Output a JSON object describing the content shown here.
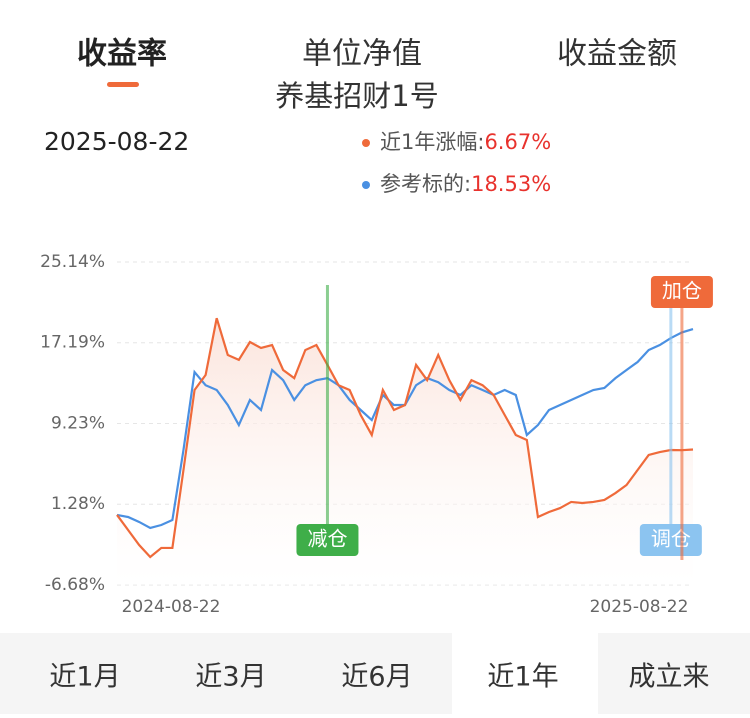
{
  "tabs": [
    "收益率",
    "单位净值",
    "收益金额"
  ],
  "fund_name": "养基招财1号",
  "date": "2025-08-22",
  "period_tabs": [
    "近1月",
    "近3月",
    "近6月",
    "近1年",
    "成立来"
  ],
  "annotations": [
    "减仓",
    "调仓",
    "加仓"
  ],
  "chart_data": {
    "type": "line",
    "categories": [
      "2024-08-22",
      null,
      null,
      null,
      null,
      null,
      null,
      null,
      null,
      null,
      null,
      null,
      null,
      null,
      null,
      null,
      null,
      null,
      null,
      null,
      null,
      null,
      null,
      null,
      null,
      null,
      null,
      null,
      null,
      null,
      null,
      null,
      null,
      null,
      null,
      null,
      null,
      null,
      null,
      null,
      null,
      null,
      null,
      null,
      null,
      null,
      null,
      null,
      null,
      null,
      null,
      null,
      "2025-08-22"
    ],
    "series": [
      {
        "name": "近1年涨幅:",
        "color": "#ef6a3a",
        "values": [
          0.22,
          -1.26,
          -2.74,
          -3.92,
          -3.03,
          -3.03,
          4.65,
          12.53,
          14.01,
          19.6,
          15.98,
          15.5,
          17.26,
          16.67,
          16.96,
          14.5,
          13.7,
          16.47,
          16.96,
          15.0,
          13.0,
          12.53,
          10.07,
          8.1,
          12.53,
          10.56,
          11.05,
          15.0,
          13.5,
          15.98,
          13.5,
          11.55,
          13.5,
          13.0,
          12.04,
          10.07,
          8.1,
          7.61,
          0.02,
          0.51,
          0.9,
          1.5,
          1.4,
          1.5,
          1.7,
          2.38,
          3.17,
          4.65,
          6.13,
          6.42,
          6.62,
          6.6,
          6.67
        ],
        "value_labels": [
          null,
          null,
          null,
          null,
          null,
          null,
          null,
          null,
          null,
          null,
          null,
          null,
          null,
          null,
          null,
          null,
          null,
          null,
          null,
          null,
          null,
          null,
          null,
          null,
          null,
          null,
          null,
          null,
          null,
          null,
          null,
          null,
          null,
          null,
          null,
          null,
          null,
          null,
          null,
          null,
          null,
          null,
          null,
          null,
          null,
          null,
          null,
          null,
          null,
          null,
          null,
          null,
          "6.67%"
        ]
      },
      {
        "name": "参考标的:",
        "color": "#4a90e2",
        "values": [
          0.22,
          0.02,
          -0.47,
          -1.06,
          -0.77,
          -0.28,
          6.62,
          14.3,
          13.0,
          12.53,
          11.05,
          9.08,
          11.55,
          10.56,
          14.5,
          13.5,
          11.55,
          13.0,
          13.5,
          13.7,
          13.0,
          11.55,
          10.56,
          9.57,
          12.04,
          11.05,
          11.05,
          13.0,
          13.7,
          13.3,
          12.53,
          12.04,
          13.0,
          12.53,
          12.04,
          12.53,
          12.04,
          8.1,
          9.08,
          10.56,
          11.05,
          11.55,
          12.04,
          12.53,
          12.73,
          13.7,
          14.5,
          15.29,
          16.47,
          16.96,
          17.65,
          18.2,
          18.53
        ],
        "value_labels": [
          null,
          null,
          null,
          null,
          null,
          null,
          null,
          null,
          null,
          null,
          null,
          null,
          null,
          null,
          null,
          null,
          null,
          null,
          null,
          null,
          null,
          null,
          null,
          null,
          null,
          null,
          null,
          null,
          null,
          null,
          null,
          null,
          null,
          null,
          null,
          null,
          null,
          null,
          null,
          null,
          null,
          null,
          null,
          null,
          null,
          null,
          null,
          null,
          null,
          null,
          null,
          null,
          "18.53%"
        ]
      }
    ],
    "ylim": [
      -6.68,
      25.14
    ],
    "yticks": [
      {
        "value": -6.68,
        "label": "-6.68%"
      },
      {
        "value": 1.28,
        "label": "1.28%"
      },
      {
        "value": 9.23,
        "label": "9.23%"
      },
      {
        "value": 17.19,
        "label": "17.19%"
      },
      {
        "value": 25.14,
        "label": "25.14%"
      }
    ],
    "grid": true
  }
}
